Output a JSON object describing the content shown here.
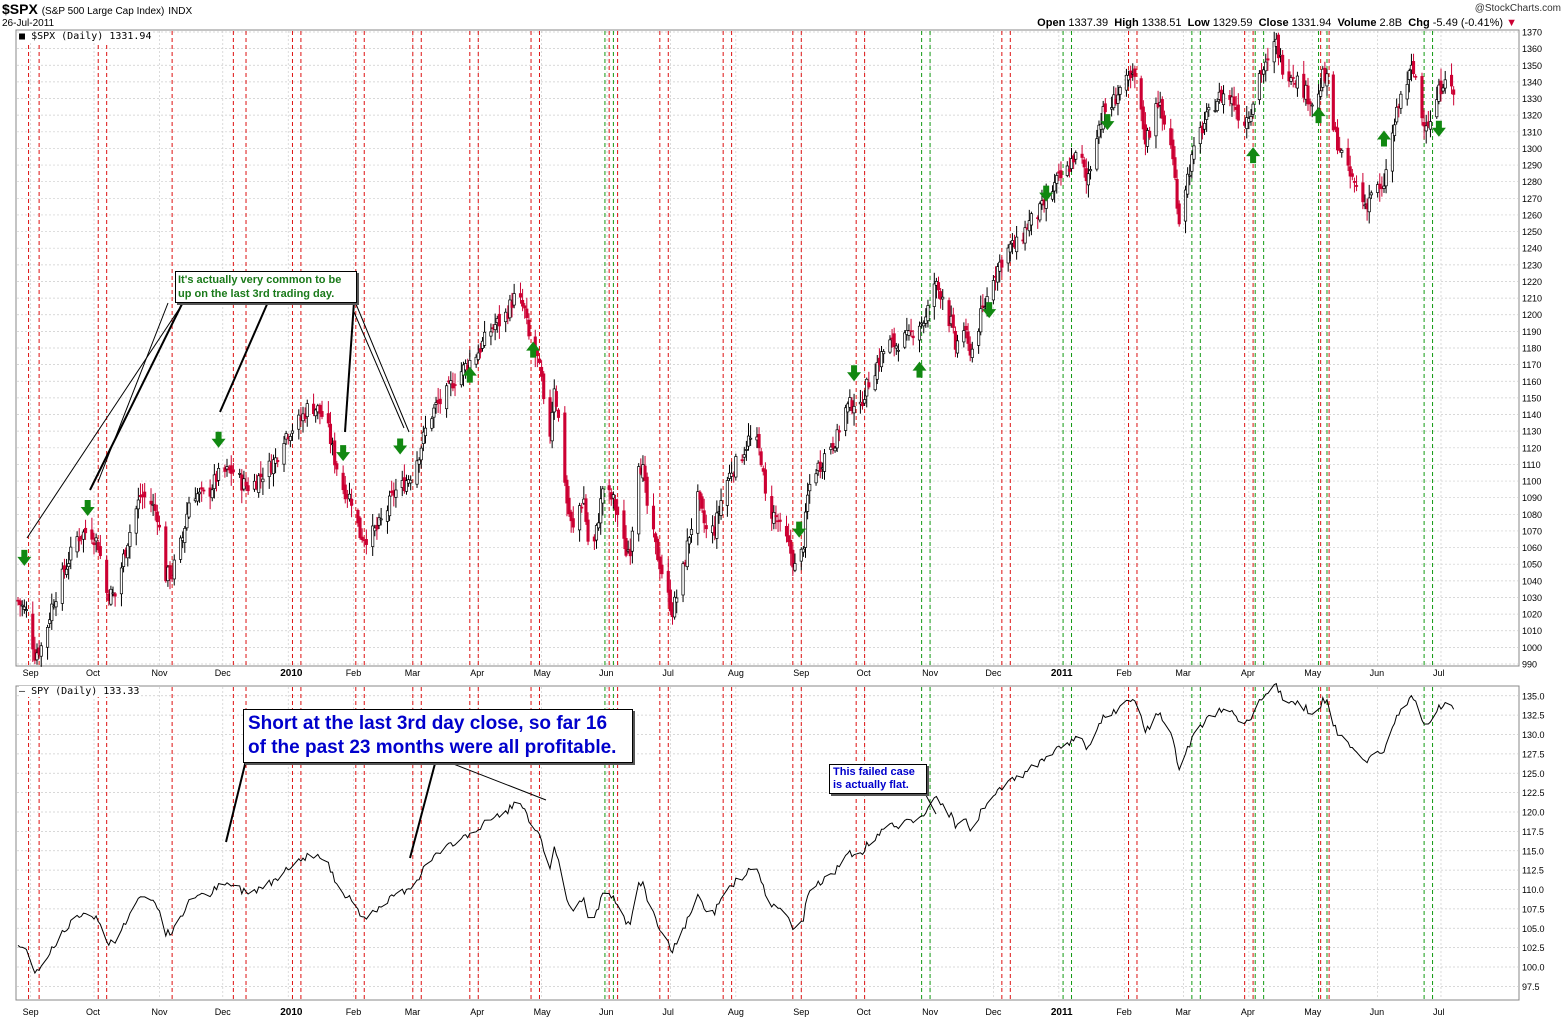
{
  "header": {
    "symbol": "$SPX",
    "description": "(S&P 500 Large Cap Index)",
    "exchange": "INDX",
    "date": "26-Jul-2011",
    "open_label": "Open",
    "open": "1337.39",
    "high_label": "High",
    "high": "1338.51",
    "low_label": "Low",
    "low": "1329.59",
    "close_label": "Close",
    "close": "1331.94",
    "volume_label": "Volume",
    "volume": "2.8B",
    "chg_label": "Chg",
    "chg": "-5.49 (-0.41%)",
    "watermark": "@StockCharts.com"
  },
  "annotations": {
    "top_note": "It's actually very common to be up on the last 3rd trading day.",
    "bottom_note": "Short at the last 3rd day close, so far 16 of the past 23 months were all profitable.",
    "failed_note": "This failed case is actually flat."
  },
  "colors": {
    "up": "#000000",
    "down": "#cc0033",
    "red_line": "#dd1111",
    "green_line": "#119911",
    "arrow": "#118811",
    "grid": "#cccccc",
    "line": "#000000"
  },
  "chart_data": [
    {
      "type": "candlestick",
      "title": "$SPX (S&P 500 Large Cap Index)",
      "legend": "$SPX (Daily) 1331.94",
      "ylim": [
        990,
        1370
      ],
      "yticks": [
        990,
        1000,
        1010,
        1020,
        1030,
        1040,
        1050,
        1060,
        1070,
        1080,
        1090,
        1100,
        1110,
        1120,
        1130,
        1140,
        1150,
        1160,
        1170,
        1180,
        1190,
        1200,
        1210,
        1220,
        1230,
        1240,
        1250,
        1260,
        1270,
        1280,
        1290,
        1300,
        1310,
        1320,
        1330,
        1340,
        1350,
        1360,
        1370
      ],
      "xticks": [
        "Sep",
        "Oct",
        "Nov",
        "Dec",
        "2010",
        "Feb",
        "Mar",
        "Apr",
        "May",
        "Jun",
        "Jul",
        "Aug",
        "Sep",
        "Oct",
        "Nov",
        "Dec",
        "2011",
        "Feb",
        "Mar",
        "Apr",
        "May",
        "Jun",
        "Jul"
      ],
      "x_range_days": [
        0,
        710
      ],
      "x_tick_days": [
        6,
        36,
        67,
        97,
        128,
        159,
        187,
        218,
        248,
        279,
        309,
        340,
        371,
        401,
        432,
        462,
        493,
        524,
        552,
        583,
        613,
        644,
        674
      ],
      "bold_ticks": [
        "2010",
        "2011"
      ],
      "close_path": [
        [
          0,
          1028
        ],
        [
          4,
          1021
        ],
        [
          8,
          996
        ],
        [
          12,
          1002
        ],
        [
          16,
          1025
        ],
        [
          22,
          1046
        ],
        [
          28,
          1066
        ],
        [
          34,
          1071
        ],
        [
          38,
          1062
        ],
        [
          42,
          1033
        ],
        [
          46,
          1031
        ],
        [
          50,
          1054
        ],
        [
          54,
          1075
        ],
        [
          58,
          1091
        ],
        [
          62,
          1089
        ],
        [
          66,
          1080
        ],
        [
          70,
          1043
        ],
        [
          73,
          1045
        ],
        [
          78,
          1066
        ],
        [
          82,
          1095
        ],
        [
          86,
          1091
        ],
        [
          90,
          1092
        ],
        [
          94,
          1102
        ],
        [
          97,
          1105
        ],
        [
          102,
          1106
        ],
        [
          106,
          1099
        ],
        [
          110,
          1096
        ],
        [
          114,
          1102
        ],
        [
          118,
          1107
        ],
        [
          122,
          1113
        ],
        [
          126,
          1127
        ],
        [
          130,
          1132
        ],
        [
          134,
          1137
        ],
        [
          138,
          1146
        ],
        [
          142,
          1143
        ],
        [
          146,
          1136
        ],
        [
          150,
          1113
        ],
        [
          154,
          1096
        ],
        [
          158,
          1089
        ],
        [
          162,
          1068
        ],
        [
          166,
          1066
        ],
        [
          170,
          1071
        ],
        [
          174,
          1080
        ],
        [
          178,
          1093
        ],
        [
          182,
          1097
        ],
        [
          186,
          1104
        ],
        [
          190,
          1117
        ],
        [
          194,
          1135
        ],
        [
          198,
          1145
        ],
        [
          202,
          1150
        ],
        [
          206,
          1160
        ],
        [
          210,
          1166
        ],
        [
          214,
          1172
        ],
        [
          218,
          1178
        ],
        [
          222,
          1187
        ],
        [
          226,
          1194
        ],
        [
          230,
          1197
        ],
        [
          234,
          1208
        ],
        [
          236,
          1212
        ],
        [
          240,
          1202
        ],
        [
          242,
          1186
        ],
        [
          246,
          1173
        ],
        [
          248,
          1160
        ],
        [
          250,
          1130
        ],
        [
          252,
          1129
        ],
        [
          254,
          1158
        ],
        [
          256,
          1137
        ],
        [
          258,
          1116
        ],
        [
          260,
          1087
        ],
        [
          262,
          1074
        ],
        [
          264,
          1067
        ],
        [
          266,
          1085
        ],
        [
          268,
          1089
        ],
        [
          270,
          1064
        ],
        [
          272,
          1055
        ],
        [
          274,
          1070
        ],
        [
          276,
          1087
        ],
        [
          278,
          1105
        ],
        [
          280,
          1091
        ],
        [
          282,
          1088
        ],
        [
          284,
          1080
        ],
        [
          286,
          1066
        ],
        [
          288,
          1058
        ],
        [
          290,
          1060
        ],
        [
          292,
          1086
        ],
        [
          294,
          1113
        ],
        [
          296,
          1106
        ],
        [
          298,
          1085
        ],
        [
          302,
          1060
        ],
        [
          306,
          1041
        ],
        [
          308,
          1030
        ],
        [
          310,
          1022
        ],
        [
          314,
          1039
        ],
        [
          318,
          1068
        ],
        [
          322,
          1089
        ],
        [
          326,
          1070
        ],
        [
          330,
          1071
        ],
        [
          334,
          1094
        ],
        [
          338,
          1107
        ],
        [
          342,
          1113
        ],
        [
          346,
          1125
        ],
        [
          350,
          1122
        ],
        [
          352,
          1114
        ],
        [
          354,
          1090
        ],
        [
          356,
          1083
        ],
        [
          360,
          1076
        ],
        [
          362,
          1066
        ],
        [
          364,
          1064
        ],
        [
          366,
          1057
        ],
        [
          368,
          1048
        ],
        [
          370,
          1049
        ],
        [
          372,
          1063
        ],
        [
          374,
          1090
        ],
        [
          376,
          1105
        ],
        [
          380,
          1110
        ],
        [
          384,
          1121
        ],
        [
          388,
          1126
        ],
        [
          390,
          1138
        ],
        [
          392,
          1143
        ],
        [
          396,
          1148
        ],
        [
          398,
          1135
        ],
        [
          400,
          1150
        ],
        [
          404,
          1163
        ],
        [
          408,
          1173
        ],
        [
          412,
          1183
        ],
        [
          416,
          1182
        ],
        [
          418,
          1185
        ],
        [
          422,
          1186
        ],
        [
          426,
          1195
        ],
        [
          430,
          1197
        ],
        [
          434,
          1219
        ],
        [
          436,
          1215
        ],
        [
          438,
          1212
        ],
        [
          440,
          1199
        ],
        [
          442,
          1195
        ],
        [
          444,
          1180
        ],
        [
          446,
          1187
        ],
        [
          448,
          1192
        ],
        [
          450,
          1180
        ],
        [
          452,
          1179
        ],
        [
          454,
          1188
        ],
        [
          456,
          1199
        ],
        [
          458,
          1206
        ],
        [
          462,
          1224
        ],
        [
          466,
          1233
        ],
        [
          470,
          1241
        ],
        [
          474,
          1242
        ],
        [
          478,
          1254
        ],
        [
          482,
          1259
        ],
        [
          484,
          1262
        ],
        [
          488,
          1270
        ],
        [
          492,
          1280
        ],
        [
          496,
          1284
        ],
        [
          500,
          1295
        ],
        [
          504,
          1292
        ],
        [
          506,
          1280
        ],
        [
          508,
          1290
        ],
        [
          510,
          1307
        ],
        [
          514,
          1321
        ],
        [
          518,
          1326
        ],
        [
          522,
          1336
        ],
        [
          526,
          1340
        ],
        [
          530,
          1343
        ],
        [
          532,
          1320
        ],
        [
          534,
          1306
        ],
        [
          536,
          1310
        ],
        [
          538,
          1330
        ],
        [
          540,
          1329
        ],
        [
          542,
          1318
        ],
        [
          546,
          1304
        ],
        [
          548,
          1281
        ],
        [
          550,
          1257
        ],
        [
          552,
          1273
        ],
        [
          556,
          1293
        ],
        [
          560,
          1310
        ],
        [
          564,
          1320
        ],
        [
          568,
          1330
        ],
        [
          572,
          1333
        ],
        [
          576,
          1328
        ],
        [
          580,
          1314
        ],
        [
          584,
          1324
        ],
        [
          586,
          1334
        ],
        [
          588,
          1345
        ],
        [
          592,
          1350
        ],
        [
          594,
          1360
        ],
        [
          596,
          1363
        ],
        [
          598,
          1353
        ],
        [
          600,
          1346
        ],
        [
          604,
          1345
        ],
        [
          608,
          1337
        ],
        [
          612,
          1330
        ],
        [
          614,
          1325
        ],
        [
          616,
          1331
        ],
        [
          618,
          1343
        ],
        [
          620,
          1340
        ],
        [
          622,
          1316
        ],
        [
          626,
          1300
        ],
        [
          630,
          1285
        ],
        [
          634,
          1277
        ],
        [
          638,
          1266
        ],
        [
          640,
          1270
        ],
        [
          642,
          1279
        ],
        [
          646,
          1272
        ],
        [
          648,
          1286
        ],
        [
          650,
          1300
        ],
        [
          652,
          1315
        ],
        [
          656,
          1336
        ],
        [
          658,
          1340
        ],
        [
          660,
          1347
        ],
        [
          662,
          1343
        ],
        [
          664,
          1320
        ],
        [
          668,
          1316
        ],
        [
          670,
          1313
        ],
        [
          672,
          1330
        ],
        [
          676,
          1345
        ],
        [
          678,
          1337
        ],
        [
          680,
          1332
        ]
      ],
      "red_lines": [
        5,
        10,
        38,
        42,
        73,
        102,
        108,
        130,
        134,
        160,
        164,
        187,
        191,
        214,
        218,
        243,
        247,
        280,
        284,
        304,
        308,
        334,
        338,
        367,
        371,
        397,
        401,
        466,
        470,
        526,
        530,
        581,
        585,
        617,
        621
      ],
      "green_lines": [
        278,
        282,
        428,
        432,
        495,
        499,
        556,
        560,
        586,
        590,
        616,
        620,
        666,
        670
      ],
      "arrows_down": [
        {
          "d": 3,
          "v": 1049
        },
        {
          "d": 33,
          "v": 1079
        },
        {
          "d": 95,
          "v": 1120
        },
        {
          "d": 154,
          "v": 1112
        },
        {
          "d": 181,
          "v": 1116
        },
        {
          "d": 370,
          "v": 1066
        },
        {
          "d": 396,
          "v": 1160
        },
        {
          "d": 487,
          "v": 1268
        },
        {
          "d": 516,
          "v": 1311
        },
        {
          "d": 460,
          "v": 1198
        },
        {
          "d": 673,
          "v": 1307
        }
      ],
      "arrows_up": [
        {
          "d": 214,
          "v": 1164
        },
        {
          "d": 244,
          "v": 1179
        },
        {
          "d": 427,
          "v": 1167
        },
        {
          "d": 585,
          "v": 1296
        },
        {
          "d": 616,
          "v": 1320
        },
        {
          "d": 647,
          "v": 1306
        }
      ]
    },
    {
      "type": "line",
      "title": "SPY",
      "legend": "SPY (Daily) 133.33",
      "ylim": [
        96,
        136
      ],
      "yticks": [
        97.5,
        100.0,
        102.5,
        105.0,
        107.5,
        110.0,
        112.5,
        115.0,
        117.5,
        120.0,
        122.5,
        125.0,
        127.5,
        130.0,
        132.5,
        135.0
      ],
      "xticks": [
        "Sep",
        "Oct",
        "Nov",
        "Dec",
        "2010",
        "Feb",
        "Mar",
        "Apr",
        "May",
        "Jun",
        "Jul",
        "Aug",
        "Sep",
        "Oct",
        "Nov",
        "Dec",
        "2011",
        "Feb",
        "Mar",
        "Apr",
        "May",
        "Jun",
        "Jul"
      ]
    }
  ]
}
